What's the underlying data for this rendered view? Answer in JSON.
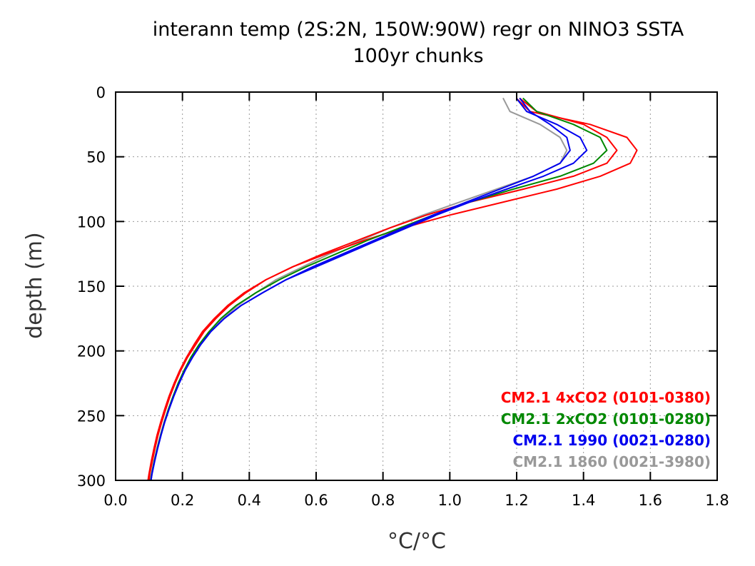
{
  "chart_data": {
    "type": "line",
    "title": "interann temp (2S:2N, 150W:90W) regr on NINO3 SSTA",
    "subtitle": "100yr chunks",
    "xlabel": "°C/°C",
    "ylabel": "depth (m)",
    "xlim": [
      0.0,
      1.8
    ],
    "ylim": [
      300,
      0
    ],
    "xticks": [
      "0.0",
      "0.2",
      "0.4",
      "0.6",
      "0.8",
      "1.0",
      "1.2",
      "1.4",
      "1.6",
      "1.8"
    ],
    "yticks": [
      "0",
      "50",
      "100",
      "150",
      "200",
      "250",
      "300"
    ],
    "grid": true,
    "legend_placement": "bottom-right",
    "depth": [
      5,
      15,
      25,
      35,
      45,
      55,
      65,
      75,
      85,
      95,
      105,
      115,
      125,
      135,
      145,
      155,
      165,
      175,
      185,
      195,
      205,
      215,
      225,
      235,
      245,
      255,
      265,
      275,
      285,
      295,
      300
    ],
    "series": [
      {
        "name": "CM2.1 4xCO2 (0101-0380)",
        "color": "#ff0000",
        "values": [
          1.2,
          1.24,
          1.42,
          1.53,
          1.56,
          1.54,
          1.45,
          1.32,
          1.16,
          1.0,
          0.86,
          0.74,
          0.63,
          0.53,
          0.45,
          0.39,
          0.34,
          0.3,
          0.265,
          0.24,
          0.215,
          0.195,
          0.178,
          0.163,
          0.15,
          0.138,
          0.127,
          0.118,
          0.11,
          0.102,
          0.1
        ]
      },
      {
        "name": "CM2.1 4xCO2 (0101-0380)",
        "color": "#ff0000",
        "values": [
          1.21,
          1.26,
          1.4,
          1.47,
          1.5,
          1.47,
          1.37,
          1.22,
          1.06,
          0.93,
          0.82,
          0.72,
          0.62,
          0.53,
          0.45,
          0.385,
          0.335,
          0.295,
          0.26,
          0.235,
          0.212,
          0.192,
          0.175,
          0.16,
          0.147,
          0.135,
          0.124,
          0.115,
          0.107,
          0.1,
          0.097
        ]
      },
      {
        "name": "CM2.1 2xCO2 (0101-0280)",
        "color": "#008800",
        "values": [
          1.22,
          1.26,
          1.37,
          1.45,
          1.47,
          1.43,
          1.33,
          1.19,
          1.06,
          0.95,
          0.85,
          0.75,
          0.66,
          0.57,
          0.49,
          0.42,
          0.36,
          0.315,
          0.28,
          0.25,
          0.225,
          0.205,
          0.187,
          0.172,
          0.158,
          0.146,
          0.135,
          0.125,
          0.116,
          0.108,
          0.105
        ]
      },
      {
        "name": "CM2.1 1990 (0021-0280)",
        "color": "#0000ee",
        "values": [
          1.2,
          1.23,
          1.32,
          1.39,
          1.41,
          1.37,
          1.28,
          1.17,
          1.06,
          0.96,
          0.87,
          0.78,
          0.69,
          0.6,
          0.51,
          0.44,
          0.375,
          0.325,
          0.285,
          0.255,
          0.23,
          0.208,
          0.19,
          0.174,
          0.16,
          0.147,
          0.136,
          0.126,
          0.117,
          0.109,
          0.106
        ]
      },
      {
        "name": "CM2.1 1990 (0021-0280)",
        "color": "#0000ee",
        "values": [
          1.21,
          1.24,
          1.3,
          1.35,
          1.36,
          1.33,
          1.25,
          1.15,
          1.05,
          0.95,
          0.86,
          0.77,
          0.68,
          0.59,
          0.51,
          0.44,
          0.375,
          0.325,
          0.285,
          0.255,
          0.23,
          0.208,
          0.19,
          0.174,
          0.16,
          0.147,
          0.136,
          0.126,
          0.117,
          0.109,
          0.106
        ]
      },
      {
        "name": "CM2.1 1860 (0021-3980)",
        "color": "#999999",
        "values": [
          1.16,
          1.18,
          1.27,
          1.33,
          1.35,
          1.33,
          1.25,
          1.14,
          1.03,
          0.92,
          0.82,
          0.73,
          0.64,
          0.56,
          0.48,
          0.42,
          0.365,
          0.32,
          0.28,
          0.25,
          0.226,
          0.205,
          0.188,
          0.172,
          0.158,
          0.145,
          0.134,
          0.124,
          0.115,
          0.107,
          0.104
        ]
      }
    ]
  }
}
